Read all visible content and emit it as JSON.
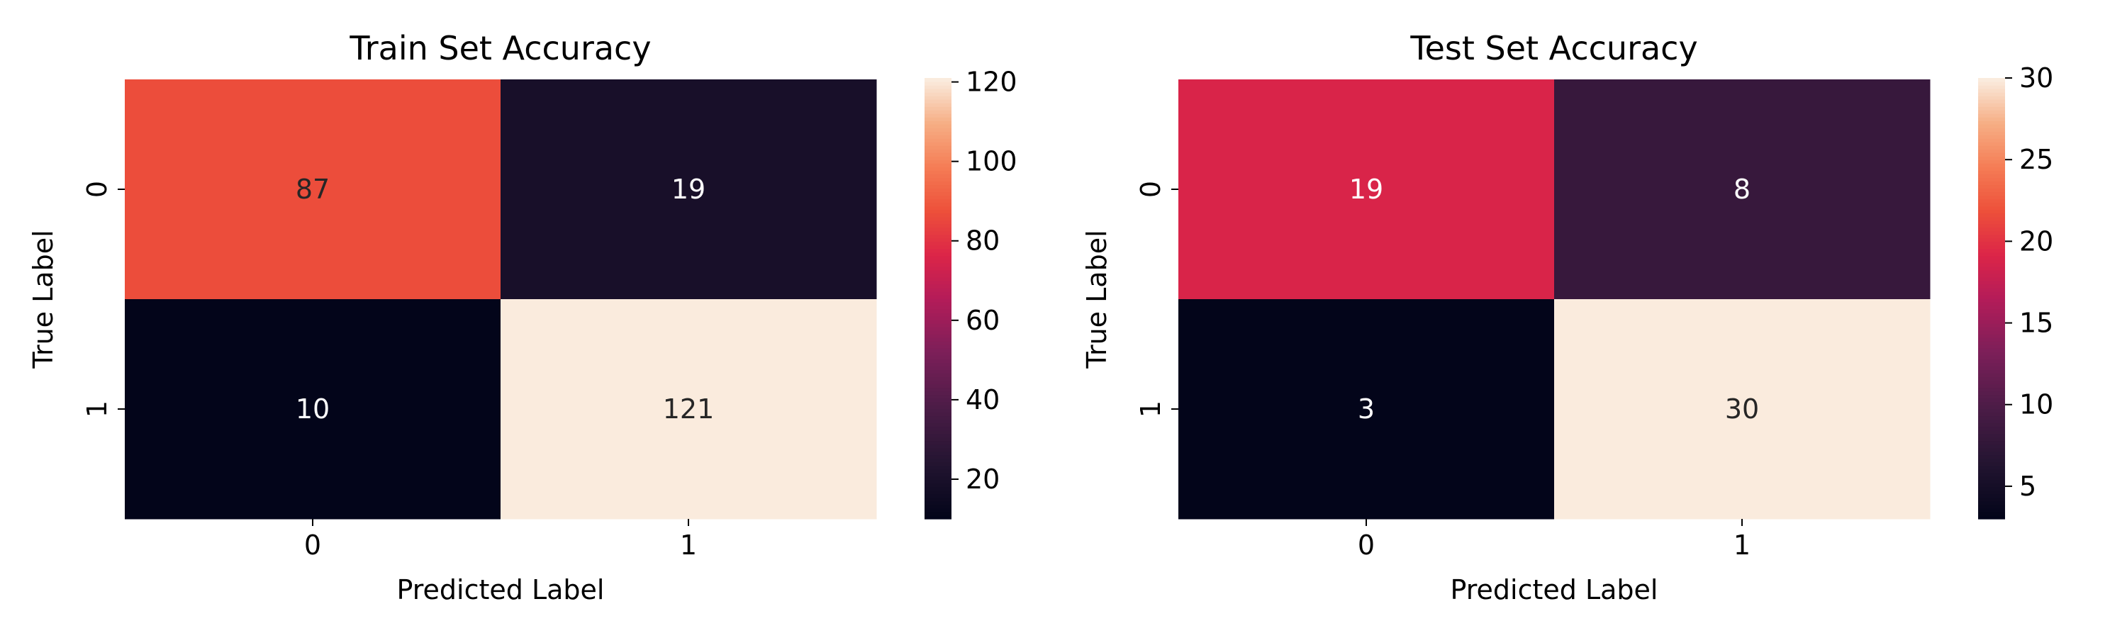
{
  "chart_data": [
    {
      "type": "heatmap",
      "title": "Train Set Accuracy",
      "xlabel": "Predicted Label",
      "ylabel": "True Label",
      "x_categories": [
        "0",
        "1"
      ],
      "y_categories": [
        "0",
        "1"
      ],
      "values": [
        [
          87,
          19
        ],
        [
          10,
          121
        ]
      ],
      "colorbar": {
        "range": [
          10,
          121
        ],
        "ticks": [
          "20",
          "40",
          "60",
          "80",
          "100",
          "120"
        ]
      },
      "colormap": "rocket"
    },
    {
      "type": "heatmap",
      "title": "Test Set Accuracy",
      "xlabel": "Predicted Label",
      "ylabel": "True Label",
      "x_categories": [
        "0",
        "1"
      ],
      "y_categories": [
        "0",
        "1"
      ],
      "values": [
        [
          19,
          8
        ],
        [
          3,
          30
        ]
      ],
      "colorbar": {
        "range": [
          3,
          30
        ],
        "ticks": [
          "5",
          "10",
          "15",
          "20",
          "25",
          "30"
        ]
      },
      "colormap": "rocket"
    }
  ]
}
